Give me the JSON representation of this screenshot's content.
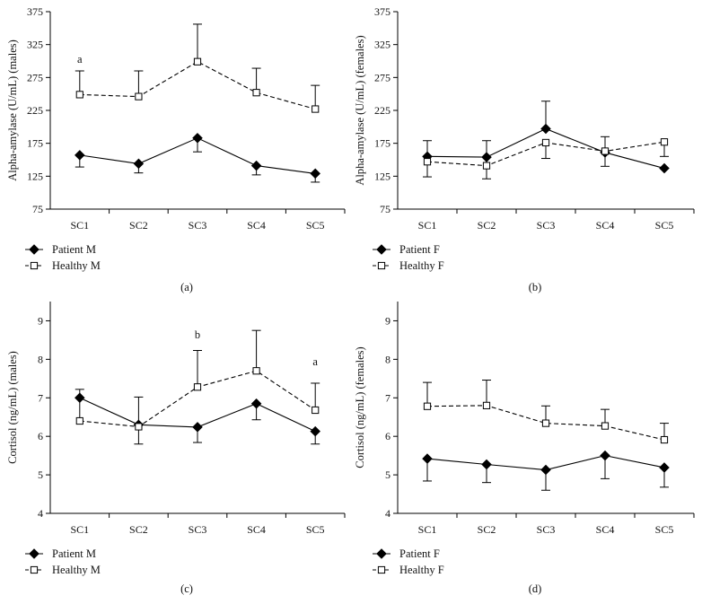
{
  "chart_data": [
    {
      "type": "line",
      "panel_label": "(a)",
      "ylabel": "Alpha-amylase (U/mL) (males)",
      "categories": [
        "SC1",
        "SC2",
        "SC3",
        "SC4",
        "SC5"
      ],
      "ylim": [
        75,
        375
      ],
      "yticks": [
        "75",
        "125",
        "175",
        "225",
        "275",
        "325",
        "375"
      ],
      "series": [
        {
          "name": "Patient M",
          "marker": "diamond",
          "dash": false,
          "values": [
            157,
            144,
            183,
            141,
            129
          ],
          "err_low": [
            18,
            14,
            21,
            14,
            13
          ],
          "err_high": [
            0,
            0,
            0,
            0,
            0
          ]
        },
        {
          "name": "Healthy M",
          "marker": "square",
          "dash": true,
          "values": [
            249,
            246,
            299,
            252,
            227
          ],
          "err_low": [
            0,
            0,
            0,
            0,
            0
          ],
          "err_high": [
            36,
            39,
            57,
            37,
            36
          ]
        }
      ],
      "annotations": [
        {
          "text": "a",
          "index": 0,
          "y": 297
        }
      ]
    },
    {
      "type": "line",
      "panel_label": "(b)",
      "ylabel": "Alpha-amylase (U/mL) (females)",
      "categories": [
        "SC1",
        "SC2",
        "SC3",
        "SC4",
        "SC5"
      ],
      "ylim": [
        75,
        375
      ],
      "yticks": [
        "75",
        "125",
        "175",
        "225",
        "275",
        "325",
        "375"
      ],
      "series": [
        {
          "name": "Patient F",
          "marker": "diamond",
          "dash": false,
          "values": [
            155,
            154,
            197,
            161,
            137
          ],
          "err_low": [
            0,
            0,
            0,
            21,
            0
          ],
          "err_high": [
            24,
            25,
            42,
            0,
            0
          ]
        },
        {
          "name": "Healthy F",
          "marker": "square",
          "dash": true,
          "values": [
            147,
            141,
            176,
            163,
            177
          ],
          "err_low": [
            23,
            20,
            24,
            0,
            22
          ],
          "err_high": [
            0,
            0,
            0,
            22,
            0
          ]
        }
      ],
      "annotations": []
    },
    {
      "type": "line",
      "panel_label": "(c)",
      "ylabel": "Cortisol (ng/mL) (males)",
      "categories": [
        "SC1",
        "SC2",
        "SC3",
        "SC4",
        "SC5"
      ],
      "ylim": [
        4,
        9.5
      ],
      "yticks": [
        "4",
        "5",
        "6",
        "7",
        "8",
        "9"
      ],
      "series": [
        {
          "name": "Patient M",
          "marker": "diamond",
          "dash": false,
          "values": [
            7.0,
            6.3,
            6.24,
            6.85,
            6.13
          ],
          "err_low": [
            0,
            0.5,
            0.4,
            0.42,
            0.33
          ],
          "err_high": [
            0,
            0,
            0,
            0,
            0
          ]
        },
        {
          "name": "Healthy M",
          "marker": "square",
          "dash": true,
          "values": [
            6.4,
            6.25,
            7.28,
            7.7,
            6.68
          ],
          "err_low": [
            0,
            0,
            0,
            0,
            0
          ],
          "err_high": [
            0.82,
            0.77,
            0.95,
            1.05,
            0.7
          ]
        }
      ],
      "annotations": [
        {
          "text": "b",
          "index": 2,
          "y": 8.55
        },
        {
          "text": "a",
          "index": 4,
          "y": 7.85
        }
      ]
    },
    {
      "type": "line",
      "panel_label": "(d)",
      "ylabel": "Cortisol (ng/mL) (females)",
      "categories": [
        "SC1",
        "SC2",
        "SC3",
        "SC4",
        "SC5"
      ],
      "ylim": [
        4,
        9.5
      ],
      "yticks": [
        "4",
        "5",
        "6",
        "7",
        "8",
        "9"
      ],
      "series": [
        {
          "name": "Patient F",
          "marker": "diamond",
          "dash": false,
          "values": [
            5.42,
            5.27,
            5.13,
            5.5,
            5.19
          ],
          "err_low": [
            0.58,
            0.47,
            0.53,
            0.6,
            0.51
          ],
          "err_high": [
            0,
            0,
            0,
            0,
            0
          ]
        },
        {
          "name": "Healthy F",
          "marker": "square",
          "dash": true,
          "values": [
            6.78,
            6.8,
            6.34,
            6.27,
            5.91
          ],
          "err_low": [
            0,
            0,
            0,
            0,
            0
          ],
          "err_high": [
            0.62,
            0.66,
            0.45,
            0.43,
            0.43
          ]
        }
      ],
      "annotations": []
    }
  ]
}
